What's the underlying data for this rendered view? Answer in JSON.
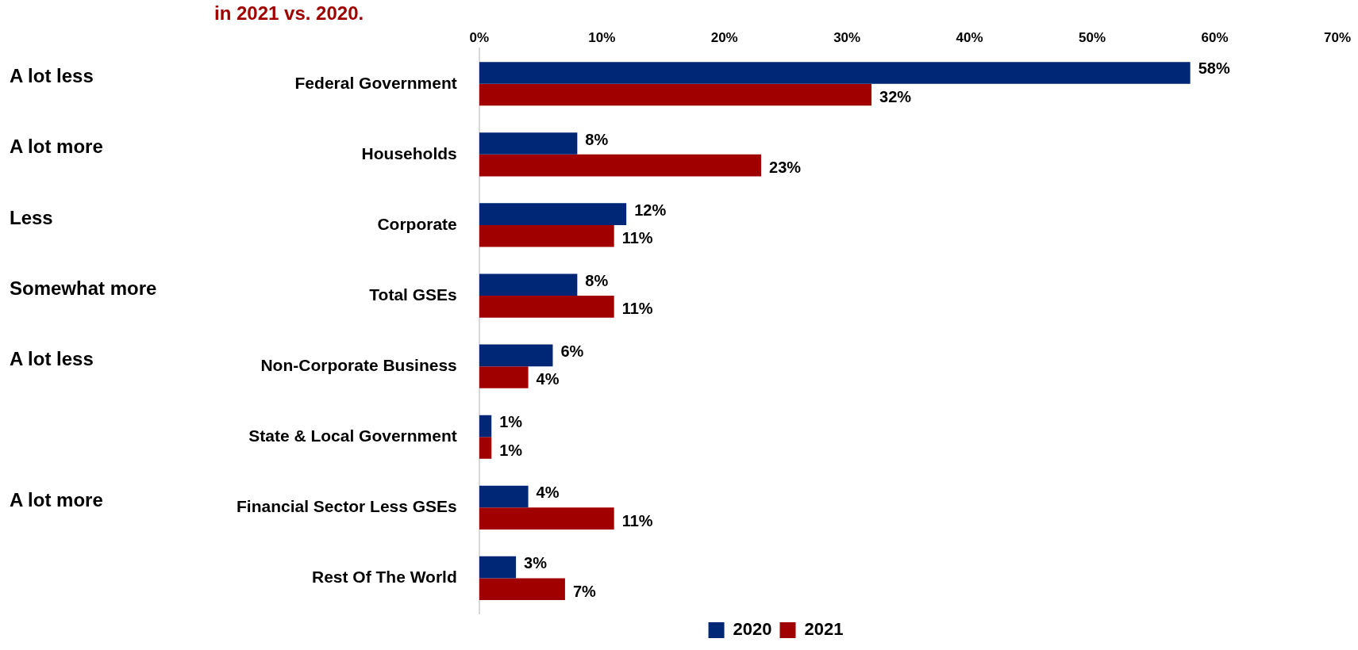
{
  "chart_data": {
    "type": "bar",
    "orientation": "horizontal",
    "title": "in 2021 vs. 2020.",
    "categories": [
      "Federal Government",
      "Households",
      "Corporate",
      "Total GSEs",
      "Non-Corporate Business",
      "State & Local Government",
      "Financial Sector Less GSEs",
      "Rest Of The World"
    ],
    "series": [
      {
        "name": "2020",
        "color": "#002776",
        "values": [
          58,
          8,
          12,
          8,
          6,
          1,
          4,
          3
        ],
        "value_labels": [
          "58%",
          "8%",
          "12%",
          "8%",
          "6%",
          "1%",
          "4%",
          "3%"
        ]
      },
      {
        "name": "2021",
        "color": "#a00000",
        "values": [
          32,
          23,
          11,
          11,
          4,
          1,
          11,
          7
        ],
        "value_labels": [
          "32%",
          "23%",
          "11%",
          "11%",
          "4%",
          "1%",
          "11%",
          "7%"
        ]
      }
    ],
    "xlim": [
      0,
      70
    ],
    "xticks": [
      {
        "value": 0,
        "label": "0%"
      },
      {
        "value": 10,
        "label": "10%"
      },
      {
        "value": 20,
        "label": "20%"
      },
      {
        "value": 30,
        "label": "30%"
      },
      {
        "value": 40,
        "label": "40%"
      },
      {
        "value": 50,
        "label": "50%"
      },
      {
        "value": 60,
        "label": "60%"
      },
      {
        "value": 70,
        "label": "70%"
      }
    ],
    "annotations": [
      "A lot less",
      "A lot more",
      "Less",
      "Somewhat more",
      "A lot less",
      "A lot more"
    ],
    "grid": false,
    "legend": "bottom"
  }
}
